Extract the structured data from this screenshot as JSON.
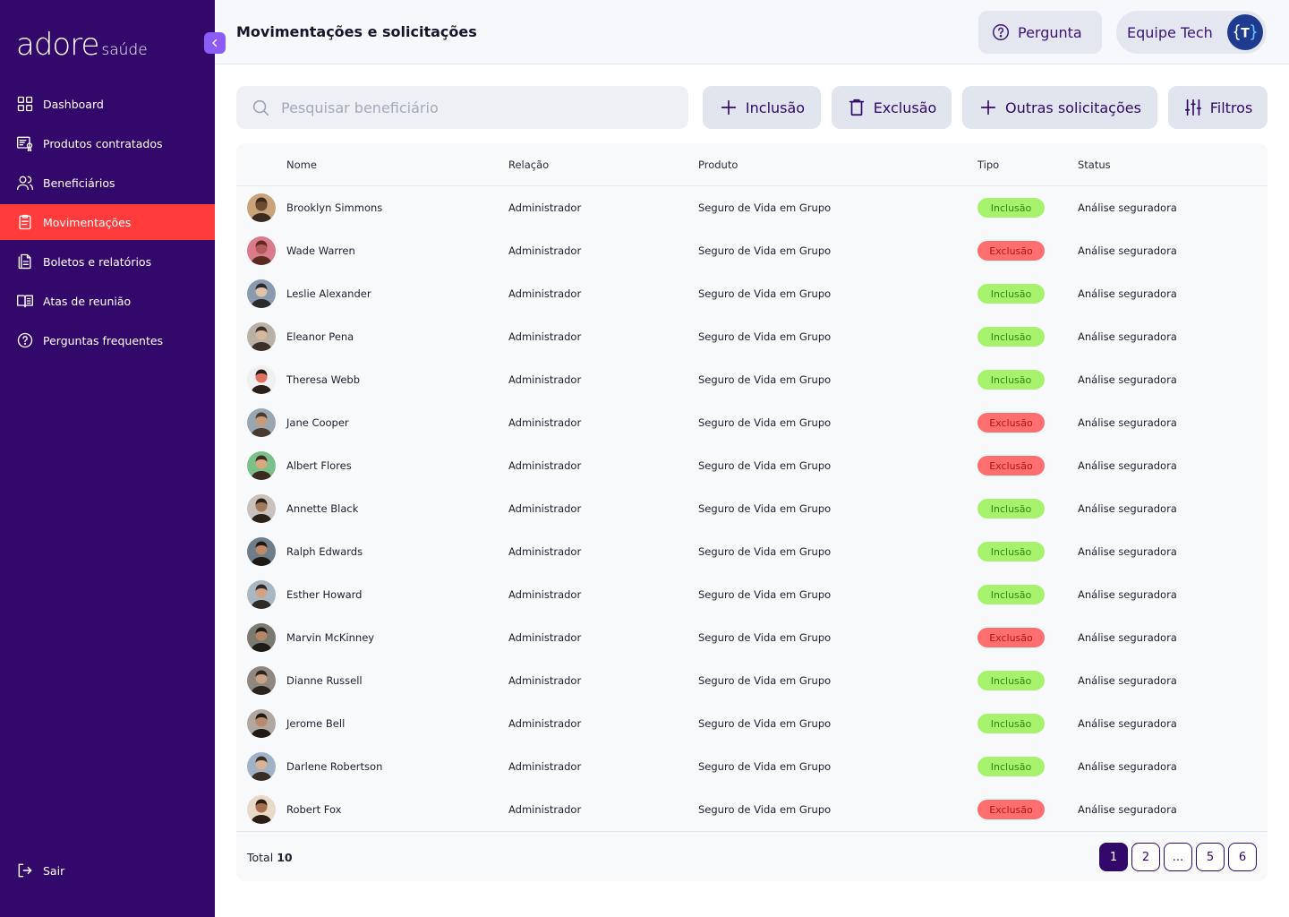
{
  "brand": {
    "name": "adore",
    "sub": "saúde"
  },
  "sidebar": {
    "items": [
      {
        "label": "Dashboard",
        "icon": "dashboard-icon",
        "active": false
      },
      {
        "label": "Produtos contratados",
        "icon": "product-contract-icon",
        "active": false
      },
      {
        "label": "Beneficiários",
        "icon": "users-icon",
        "active": false
      },
      {
        "label": "Movimentações",
        "icon": "clipboard-icon",
        "active": true
      },
      {
        "label": "Boletos e relatórios",
        "icon": "documents-icon",
        "active": false
      },
      {
        "label": "Atas de reunião",
        "icon": "book-icon",
        "active": false
      },
      {
        "label": "Perguntas frequentes",
        "icon": "question-icon",
        "active": false
      }
    ],
    "logout": "Sair"
  },
  "header": {
    "title": "Movimentações e solicitações",
    "question_button": "Pergunta",
    "team_name": "Equipe Tech",
    "team_avatar_letter": "T"
  },
  "toolbar": {
    "search_placeholder": "Pesquisar beneficiário",
    "inclusao": "Inclusão",
    "exclusao": "Exclusão",
    "outras": "Outras solicitações",
    "filtros": "Filtros"
  },
  "table": {
    "columns": [
      "Nome",
      "Relação",
      "Produto",
      "Tipo",
      "Status"
    ],
    "rows": [
      {
        "name": "Brooklyn Simmons",
        "relation": "Administrador",
        "product": "Seguro de Vida em Grupo",
        "type": "Inclusão",
        "status": "Análise seguradora"
      },
      {
        "name": "Wade Warren",
        "relation": "Administrador",
        "product": "Seguro de Vida em Grupo",
        "type": "Exclusão",
        "status": "Análise seguradora"
      },
      {
        "name": "Leslie Alexander",
        "relation": "Administrador",
        "product": "Seguro de Vida em Grupo",
        "type": "Inclusão",
        "status": "Análise seguradora"
      },
      {
        "name": "Eleanor Pena",
        "relation": "Administrador",
        "product": "Seguro de Vida em Grupo",
        "type": "Inclusão",
        "status": "Análise seguradora"
      },
      {
        "name": "Theresa Webb",
        "relation": "Administrador",
        "product": "Seguro de Vida em Grupo",
        "type": "Inclusão",
        "status": "Análise seguradora"
      },
      {
        "name": "Jane Cooper",
        "relation": "Administrador",
        "product": "Seguro de Vida em Grupo",
        "type": "Exclusão",
        "status": "Análise seguradora"
      },
      {
        "name": "Albert Flores",
        "relation": "Administrador",
        "product": "Seguro de Vida em Grupo",
        "type": "Exclusão",
        "status": "Análise seguradora"
      },
      {
        "name": "Annette Black",
        "relation": "Administrador",
        "product": "Seguro de Vida em Grupo",
        "type": "Inclusão",
        "status": "Análise seguradora"
      },
      {
        "name": "Ralph Edwards",
        "relation": "Administrador",
        "product": "Seguro de Vida em Grupo",
        "type": "Inclusão",
        "status": "Análise seguradora"
      },
      {
        "name": "Esther Howard",
        "relation": "Administrador",
        "product": "Seguro de Vida em Grupo",
        "type": "Inclusão",
        "status": "Análise seguradora"
      },
      {
        "name": "Marvin McKinney",
        "relation": "Administrador",
        "product": "Seguro de Vida em Grupo",
        "type": "Exclusão",
        "status": "Análise seguradora"
      },
      {
        "name": "Dianne Russell",
        "relation": "Administrador",
        "product": "Seguro de Vida em Grupo",
        "type": "Inclusão",
        "status": "Análise seguradora"
      },
      {
        "name": "Jerome Bell",
        "relation": "Administrador",
        "product": "Seguro de Vida em Grupo",
        "type": "Inclusão",
        "status": "Análise seguradora"
      },
      {
        "name": "Darlene Robertson",
        "relation": "Administrador",
        "product": "Seguro de Vida em Grupo",
        "type": "Inclusão",
        "status": "Análise seguradora"
      },
      {
        "name": "Robert Fox",
        "relation": "Administrador",
        "product": "Seguro de Vida em Grupo",
        "type": "Exclusão",
        "status": "Análise seguradora"
      }
    ]
  },
  "footer": {
    "total_label": "Total",
    "total_value": "10",
    "pages": [
      "1",
      "2",
      "...",
      "5",
      "6"
    ],
    "current_page": "1"
  },
  "colors": {
    "sidebar_bg": "#32086b",
    "active_nav": "#ff3b3b",
    "inclusao_bg": "#a6f26c",
    "exclusao_bg": "#ff6f6f",
    "primary": "#32086b"
  }
}
